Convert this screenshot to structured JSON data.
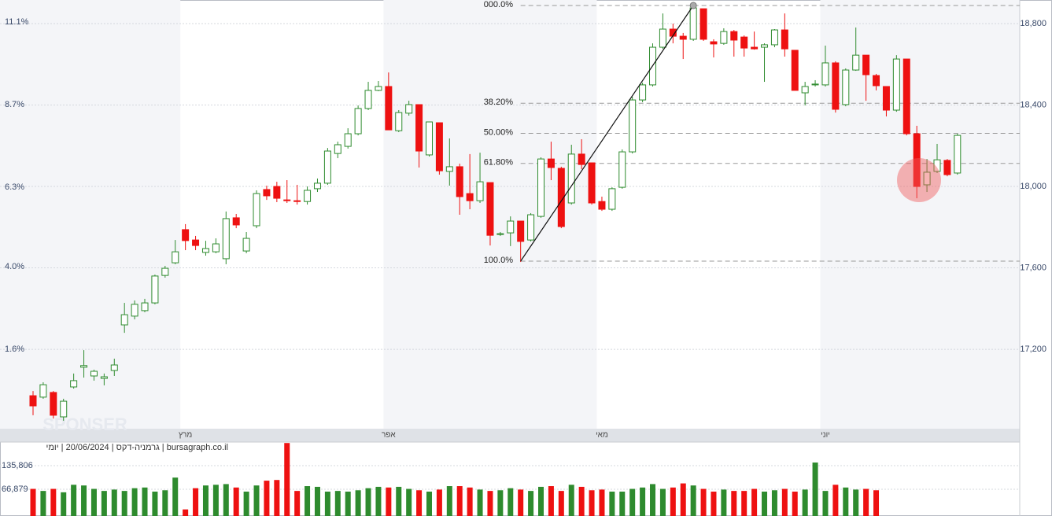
{
  "chart_data": {
    "type": "candlestick",
    "categories": [
      null,
      null,
      null,
      null,
      null,
      null,
      null,
      null,
      null,
      null,
      null,
      null,
      null,
      null,
      null,
      "מרץ",
      null,
      null,
      null,
      null,
      null,
      null,
      null,
      null,
      null,
      null,
      null,
      null,
      null,
      null,
      null,
      null,
      null,
      null,
      null,
      "אפר",
      null,
      null,
      null,
      null,
      null,
      null,
      null,
      null,
      null,
      null,
      null,
      null,
      null,
      null,
      null,
      null,
      null,
      null,
      null,
      null,
      "מאי",
      null,
      null,
      null,
      null,
      null,
      null,
      null,
      null,
      null,
      null,
      null,
      null,
      null,
      null,
      null,
      null,
      null,
      null,
      null,
      null,
      null,
      "יוני",
      null,
      null,
      null,
      null,
      null,
      null,
      null,
      null,
      null,
      null,
      null,
      null,
      null
    ],
    "open": [
      16972,
      16965,
      16988,
      16868,
      17015,
      17112,
      17069,
      17057,
      17096,
      17320,
      17363,
      17390,
      17428,
      17563,
      17625,
      17788,
      17737,
      17676,
      17679,
      17645,
      17846,
      17683,
      17807,
      17985,
      18000,
      17934,
      17930,
      17926,
      17989,
      18016,
      18162,
      18197,
      18259,
      18383,
      18472,
      18491,
      18274,
      18360,
      18402,
      18155,
      18313,
      18074,
      18097,
      17965,
      17930,
      18019,
      17764,
      17772,
      17830,
      17737,
      17853,
      18135,
      18089,
      17919,
      18159,
      18116,
      17926,
      17888,
      17996,
      18170,
      18425,
      18499,
      18684,
      18773,
      18738,
      18723,
      18873,
      18711,
      18703,
      18761,
      18734,
      18684,
      18684,
      18696,
      18769,
      18669,
      18460,
      18499,
      18499,
      18607,
      18402,
      18572,
      18645,
      18545,
      18491,
      18375,
      18626,
      18259,
      18008,
      18074,
      18128,
      18066
    ],
    "close": [
      16922,
      17026,
      16876,
      16945,
      17046,
      17120,
      17092,
      17065,
      17123,
      17370,
      17421,
      17428,
      17560,
      17598,
      17679,
      17734,
      17710,
      17695,
      17718,
      17842,
      17811,
      17745,
      17965,
      17954,
      17942,
      17930,
      17926,
      17981,
      18016,
      18174,
      18205,
      18259,
      18383,
      18472,
      18491,
      18278,
      18363,
      18402,
      18174,
      18317,
      18077,
      18097,
      17950,
      17930,
      18023,
      17760,
      17768,
      17830,
      17730,
      17861,
      18135,
      18093,
      17803,
      18159,
      18108,
      17919,
      17888,
      17989,
      18170,
      18425,
      18499,
      18684,
      18773,
      18738,
      18723,
      18877,
      18723,
      18700,
      18761,
      18719,
      18680,
      18676,
      18696,
      18769,
      18676,
      18472,
      18491,
      18503,
      18607,
      18379,
      18572,
      18645,
      18549,
      18495,
      18375,
      18626,
      18259,
      18000,
      18070,
      18131,
      18058,
      18251
    ],
    "high": [
      16995,
      17038,
      16995,
      16957,
      17081,
      17196,
      17100,
      17081,
      17154,
      17428,
      17440,
      17448,
      17567,
      17610,
      17737,
      17815,
      17757,
      17733,
      17745,
      17877,
      17865,
      17776,
      17981,
      18004,
      18023,
      18031,
      18008,
      18000,
      18039,
      18189,
      18220,
      18286,
      18398,
      18514,
      18518,
      18560,
      18375,
      18421,
      18402,
      18317,
      18313,
      18236,
      18112,
      18159,
      18166,
      18019,
      17776,
      17853,
      17830,
      17869,
      18143,
      18220,
      18097,
      18205,
      18232,
      18116,
      17950,
      17996,
      18182,
      18441,
      18510,
      18703,
      18850,
      18800,
      18754,
      18897,
      18873,
      18723,
      18777,
      18769,
      18742,
      18761,
      18703,
      18773,
      18850,
      18669,
      18514,
      18522,
      18692,
      18615,
      18580,
      18781,
      18645,
      18553,
      18491,
      18645,
      18626,
      18298,
      18135,
      18209,
      18135,
      18259
    ],
    "low": [
      16876,
      16957,
      16860,
      16849,
      17007,
      17061,
      17046,
      17023,
      17069,
      17281,
      17347,
      17382,
      17421,
      17552,
      17618,
      17687,
      17687,
      17660,
      17672,
      17618,
      17795,
      17672,
      17795,
      17934,
      17923,
      17919,
      17911,
      17911,
      17973,
      18008,
      18139,
      18186,
      18251,
      18375,
      18468,
      18278,
      18267,
      18348,
      18093,
      18147,
      18058,
      18004,
      17861,
      17888,
      17919,
      17710,
      17757,
      17707,
      17629,
      17730,
      17846,
      18031,
      17795,
      17911,
      18085,
      17911,
      17880,
      17880,
      17989,
      18162,
      18414,
      18491,
      18676,
      18703,
      18626,
      18715,
      18715,
      18634,
      18696,
      18638,
      18638,
      18672,
      18514,
      18684,
      18638,
      18472,
      18398,
      18491,
      18491,
      18363,
      18394,
      18568,
      18421,
      18472,
      18344,
      18367,
      18251,
      17942,
      17973,
      18066,
      18050,
      18058
    ],
    "volume": [
      68000,
      62000,
      68000,
      58000,
      80000,
      78000,
      68000,
      62000,
      66000,
      62000,
      70000,
      72000,
      60000,
      64000,
      101000,
      8000,
      70000,
      78000,
      80000,
      82000,
      72000,
      60000,
      78000,
      92000,
      94000,
      202000,
      62000,
      76000,
      74000,
      60000,
      62000,
      60000,
      64000,
      70000,
      74000,
      72000,
      74000,
      68000,
      64000,
      60000,
      66000,
      76000,
      76000,
      72000,
      66000,
      62000,
      64000,
      70000,
      66000,
      62000,
      74000,
      76000,
      62000,
      80000,
      74000,
      64000,
      66000,
      60000,
      60000,
      68000,
      72000,
      82000,
      68000,
      72000,
      84000,
      78000,
      68000,
      60000,
      66000,
      62000,
      62000,
      68000,
      60000,
      64000,
      68000,
      60000,
      66000,
      145000,
      62000,
      80000,
      72000,
      66000,
      68000,
      64000,
      null,
      null,
      null,
      null,
      null,
      null,
      null,
      null
    ],
    "up_color": "#2e8b2e",
    "down_color": "#ee1111",
    "ylim": [
      16810,
      18916
    ],
    "yticks": [
      {
        "value": 17200,
        "label": "17,200"
      },
      {
        "value": 17600,
        "label": "17,600"
      },
      {
        "value": 18000,
        "label": "18,000"
      },
      {
        "value": 18400,
        "label": "18,400"
      },
      {
        "value": 18800,
        "label": "18,800"
      }
    ],
    "y2lim": [
      -0.7,
      11.74
    ],
    "y2ticks": [
      {
        "value": 1.6,
        "label": "1.6%"
      },
      {
        "value": 4.0,
        "label": "4.0%"
      },
      {
        "value": 6.3,
        "label": "6.3%"
      },
      {
        "value": 8.7,
        "label": "8.7%"
      },
      {
        "value": 11.1,
        "label": "11.1%"
      }
    ],
    "volume_lim": [
      -11240,
      202500
    ],
    "volume_ticks": [
      {
        "value": 66879,
        "label": "66,879"
      },
      {
        "value": 135806,
        "label": "135,806"
      }
    ],
    "fibonacci": [
      {
        "value": 18889,
        "label": "000.0%"
      },
      {
        "value": 18409,
        "label": "38.20%"
      },
      {
        "value": 18261,
        "label": "50.00%"
      },
      {
        "value": 18113,
        "label": "61.80%"
      },
      {
        "value": 17633,
        "label": "100.0%"
      }
    ],
    "caption": "bursagraph.co.il | גרמניה-דקס | 20/06/2024 | יומי",
    "watermark": "SPONSER",
    "grid": true
  }
}
